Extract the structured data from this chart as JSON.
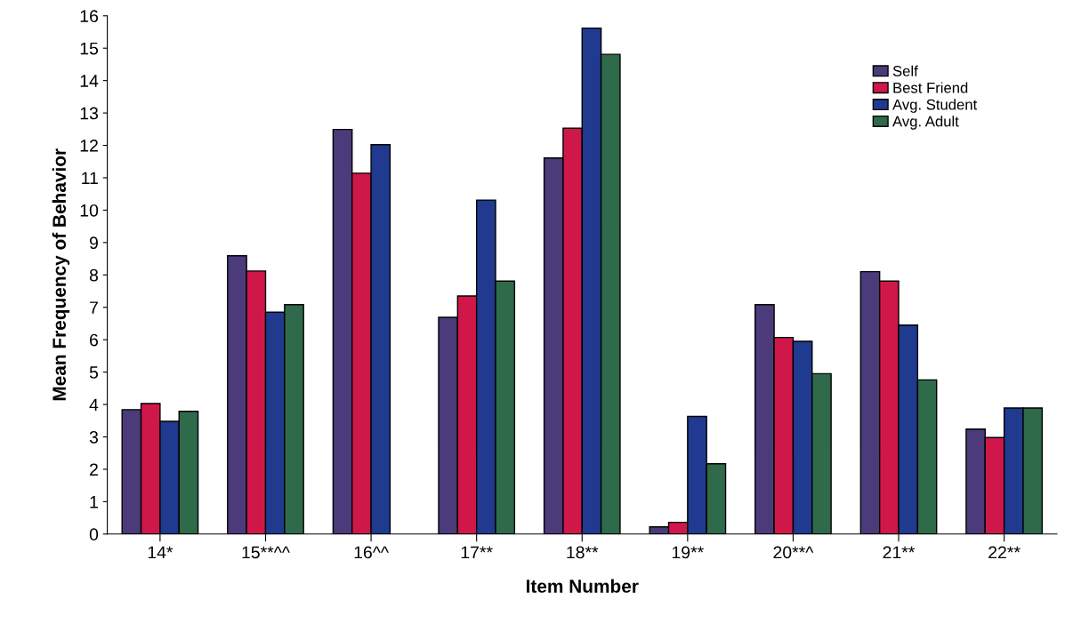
{
  "chart_data": {
    "type": "bar",
    "xlabel": "Item Number",
    "ylabel": "Mean Frequency of Behavior",
    "categories": [
      "14*",
      "15**^^",
      "16^^",
      "17**",
      "18**",
      "19**",
      "20**^",
      "21**",
      "22**"
    ],
    "series": [
      {
        "name": "Self",
        "color": "#4b3b7a",
        "values": [
          3.84,
          8.59,
          12.49,
          6.69,
          11.61,
          0.22,
          7.08,
          8.1,
          3.24
        ]
      },
      {
        "name": "Best Friend",
        "color": "#d0174a",
        "values": [
          4.03,
          8.12,
          11.14,
          7.35,
          12.53,
          0.36,
          6.07,
          7.81,
          2.98
        ]
      },
      {
        "name": "Avg. Student",
        "color": "#1f3a8f",
        "values": [
          3.48,
          6.85,
          12.02,
          10.31,
          15.62,
          3.63,
          5.95,
          6.45,
          3.89
        ]
      },
      {
        "name": "Avg. Adult",
        "color": "#2f6a4a",
        "values": [
          3.79,
          7.08,
          null,
          7.81,
          14.81,
          2.17,
          4.95,
          4.76,
          3.89
        ]
      }
    ],
    "ylim": [
      0,
      16
    ],
    "yticks": [
      0,
      1,
      2,
      3,
      4,
      5,
      6,
      7,
      8,
      9,
      10,
      11,
      12,
      13,
      14,
      15,
      16
    ],
    "grid": false,
    "legend": "top right"
  }
}
